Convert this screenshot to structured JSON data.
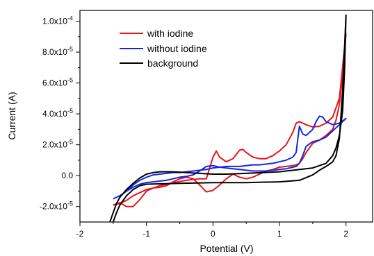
{
  "chart_data": {
    "type": "line",
    "xlabel": "Potential (V)",
    "ylabel": "Current (A)",
    "xlim": [
      -2,
      2.4
    ],
    "ylim": [
      -3e-05,
      0.000107
    ],
    "x_ticks": [
      {
        "value": -2,
        "label": "-2"
      },
      {
        "value": -1,
        "label": "-1"
      },
      {
        "value": 0,
        "label": "0"
      },
      {
        "value": 1,
        "label": "1"
      },
      {
        "value": 2,
        "label": "2"
      }
    ],
    "y_ticks": [
      {
        "value": -2e-05,
        "label": "-2.0x10",
        "exp": "-5"
      },
      {
        "value": 0,
        "label": "0.0",
        "exp": ""
      },
      {
        "value": 2e-05,
        "label": "2.0x10",
        "exp": "-5"
      },
      {
        "value": 4e-05,
        "label": "4.0x10",
        "exp": "-5"
      },
      {
        "value": 6e-05,
        "label": "6.0x10",
        "exp": "-5"
      },
      {
        "value": 8e-05,
        "label": "8.0x10",
        "exp": "-5"
      },
      {
        "value": 0.0001,
        "label": "1.0x10",
        "exp": "-4"
      }
    ],
    "grid": false,
    "legend_position": "top-left",
    "series": [
      {
        "name": "with iodine",
        "color": "#e8141c",
        "x": [
          -1.5,
          -1.4,
          -1.3,
          -1.2,
          -1.1,
          -1.0,
          -0.9,
          -0.8,
          -0.7,
          -0.6,
          -0.5,
          -0.4,
          -0.3,
          -0.2,
          -0.1,
          0.0,
          0.05,
          0.1,
          0.2,
          0.3,
          0.4,
          0.45,
          0.5,
          0.6,
          0.7,
          0.8,
          0.9,
          1.0,
          1.1,
          1.2,
          1.25,
          1.3,
          1.4,
          1.5,
          1.6,
          1.7,
          1.8,
          1.9,
          2.0,
          2.0,
          1.95,
          1.9,
          1.85,
          1.8,
          1.7,
          1.6,
          1.5,
          1.4,
          1.35,
          1.3,
          1.25,
          1.2,
          1.1,
          1.0,
          0.9,
          0.8,
          0.7,
          0.6,
          0.5,
          0.4,
          0.3,
          0.2,
          0.1,
          0.0,
          -0.1,
          -0.2,
          -0.3,
          -0.4,
          -0.5,
          -0.6,
          -0.7,
          -0.8,
          -0.9,
          -1.0,
          -1.1,
          -1.2,
          -1.3,
          -1.4,
          -1.5
        ],
        "y": [
          -1.9e-05,
          -1.8e-05,
          -1.6e-05,
          -1.3e-05,
          -1.1e-05,
          -9e-06,
          -8e-06,
          -6.5e-06,
          -5.5e-06,
          -4.5e-06,
          -3.8e-06,
          -3e-06,
          -2.5e-06,
          -2e-06,
          -2e-06,
          1.2e-05,
          1.6e-05,
          1.2e-05,
          9e-06,
          1.1e-05,
          1.65e-05,
          1.7e-05,
          1.5e-05,
          1.2e-05,
          1.1e-05,
          1.1e-05,
          1.3e-05,
          1.6e-05,
          2e-05,
          2.8e-05,
          3.4e-05,
          3.5e-05,
          3.3e-05,
          3.15e-05,
          3.2e-05,
          3.4e-05,
          3.8e-05,
          5e-05,
          9.2e-05,
          9.2e-05,
          6.5e-05,
          4.6e-05,
          3.6e-05,
          3e-05,
          2.6e-05,
          2.3e-05,
          2.1e-05,
          1.5e-05,
          1.1e-05,
          8e-06,
          7e-06,
          6.5e-06,
          6e-06,
          5.5e-06,
          4e-06,
          3e-06,
          1e-06,
          -1e-06,
          -2e-06,
          -1e-06,
          1e-06,
          -2e-06,
          -6e-06,
          -9.5e-06,
          -1.05e-05,
          -6e-06,
          -2e-06,
          -1e-06,
          -2e-06,
          -4e-06,
          -6.5e-06,
          -7.5e-06,
          -8e-06,
          -1e-05,
          -1.55e-05,
          -2e-05,
          -2e-05,
          -1.75e-05,
          -1.9e-05
        ]
      },
      {
        "name": "without iodine",
        "color": "#1424e6",
        "x": [
          -1.5,
          -1.4,
          -1.3,
          -1.2,
          -1.1,
          -1.0,
          -0.9,
          -0.8,
          -0.7,
          -0.6,
          -0.5,
          -0.4,
          -0.3,
          -0.2,
          -0.1,
          0.0,
          0.1,
          0.2,
          0.3,
          0.4,
          0.5,
          0.6,
          0.7,
          0.8,
          0.9,
          1.0,
          1.1,
          1.2,
          1.25,
          1.3,
          1.35,
          1.4,
          1.5,
          1.55,
          1.6,
          1.65,
          1.7,
          1.8,
          1.9,
          2.0,
          2.0,
          1.9,
          1.8,
          1.7,
          1.6,
          1.5,
          1.4,
          1.35,
          1.3,
          1.25,
          1.2,
          1.1,
          1.0,
          0.9,
          0.8,
          0.7,
          0.6,
          0.5,
          0.4,
          0.3,
          0.2,
          0.1,
          0.0,
          -0.1,
          -0.2,
          -0.3,
          -0.4,
          -0.5,
          -0.6,
          -0.7,
          -0.8,
          -0.9,
          -1.0,
          -1.1,
          -1.2,
          -1.3,
          -1.4,
          -1.5
        ],
        "y": [
          -1.5e-05,
          -1.3e-05,
          -1e-05,
          -6e-06,
          -3e-06,
          -1e-06,
          5e-07,
          1e-06,
          1.5e-06,
          2e-06,
          2e-06,
          2.5e-06,
          3e-06,
          3.5e-06,
          4e-06,
          5e-06,
          5.5e-06,
          6e-06,
          6e-06,
          6e-06,
          6.5e-06,
          7e-06,
          7e-06,
          7.5e-06,
          8e-06,
          9e-06,
          1e-05,
          1.2e-05,
          1.5e-05,
          3.2e-05,
          2.7e-05,
          2.6e-05,
          3e-05,
          3.5e-05,
          3.85e-05,
          3.8e-05,
          3.5e-05,
          3.3e-05,
          3.4e-05,
          3.7e-05,
          3.7e-05,
          3.3e-05,
          2.9e-05,
          2.5e-05,
          2.3e-05,
          2.2e-05,
          1.9e-05,
          1.3e-05,
          8e-06,
          6e-06,
          5.5e-06,
          4.5e-06,
          4e-06,
          3.5e-06,
          3e-06,
          3e-06,
          3e-06,
          3.5e-06,
          4e-06,
          4.5e-06,
          5e-06,
          5.5e-06,
          6.5e-06,
          6e-06,
          3e-06,
          5e-07,
          -5e-07,
          -1e-06,
          -2e-06,
          -3e-06,
          -3.5e-06,
          -4e-06,
          -4.5e-06,
          -5.5e-06,
          -7.5e-06,
          -1e-05,
          -1.3e-05,
          -1.5e-05
        ]
      },
      {
        "name": "background",
        "color": "#000000",
        "x": [
          -1.55,
          -1.5,
          -1.45,
          -1.4,
          -1.3,
          -1.2,
          -1.1,
          -1.0,
          -0.9,
          -0.8,
          -0.6,
          -0.4,
          -0.2,
          0.0,
          0.2,
          0.5,
          1.0,
          1.5,
          1.7,
          1.8,
          1.85,
          1.9,
          1.95,
          1.98,
          2.0,
          2.0,
          1.95,
          1.9,
          1.85,
          1.8,
          1.7,
          1.6,
          1.5,
          1.3,
          1.0,
          0.5,
          0.0,
          -0.5,
          -1.0,
          -1.1,
          -1.2,
          -1.3,
          -1.35,
          -1.4,
          -1.45,
          -1.5
        ],
        "y": [
          -3e-05,
          -2.4e-05,
          -1.8e-05,
          -1.4e-05,
          -9e-06,
          -5e-06,
          -1.5e-06,
          1e-06,
          2e-06,
          2.5e-06,
          2.5e-06,
          2e-06,
          1.5e-06,
          1e-06,
          1e-06,
          1.5e-06,
          2.5e-06,
          5e-06,
          8e-06,
          1.3e-05,
          1.8e-05,
          2.6e-05,
          4.2e-05,
          7e-05,
          0.000104,
          0.000104,
          5.5e-05,
          2.4e-05,
          1.3e-05,
          9e-06,
          6e-06,
          3.5e-06,
          5e-07,
          -3e-06,
          -4e-06,
          -4.5e-06,
          -4.5e-06,
          -5e-06,
          -5.5e-06,
          -6.5e-06,
          -9e-06,
          -1.3e-05,
          -1.6e-05,
          -1.9e-05,
          -2.4e-05,
          -3e-05
        ]
      }
    ]
  }
}
